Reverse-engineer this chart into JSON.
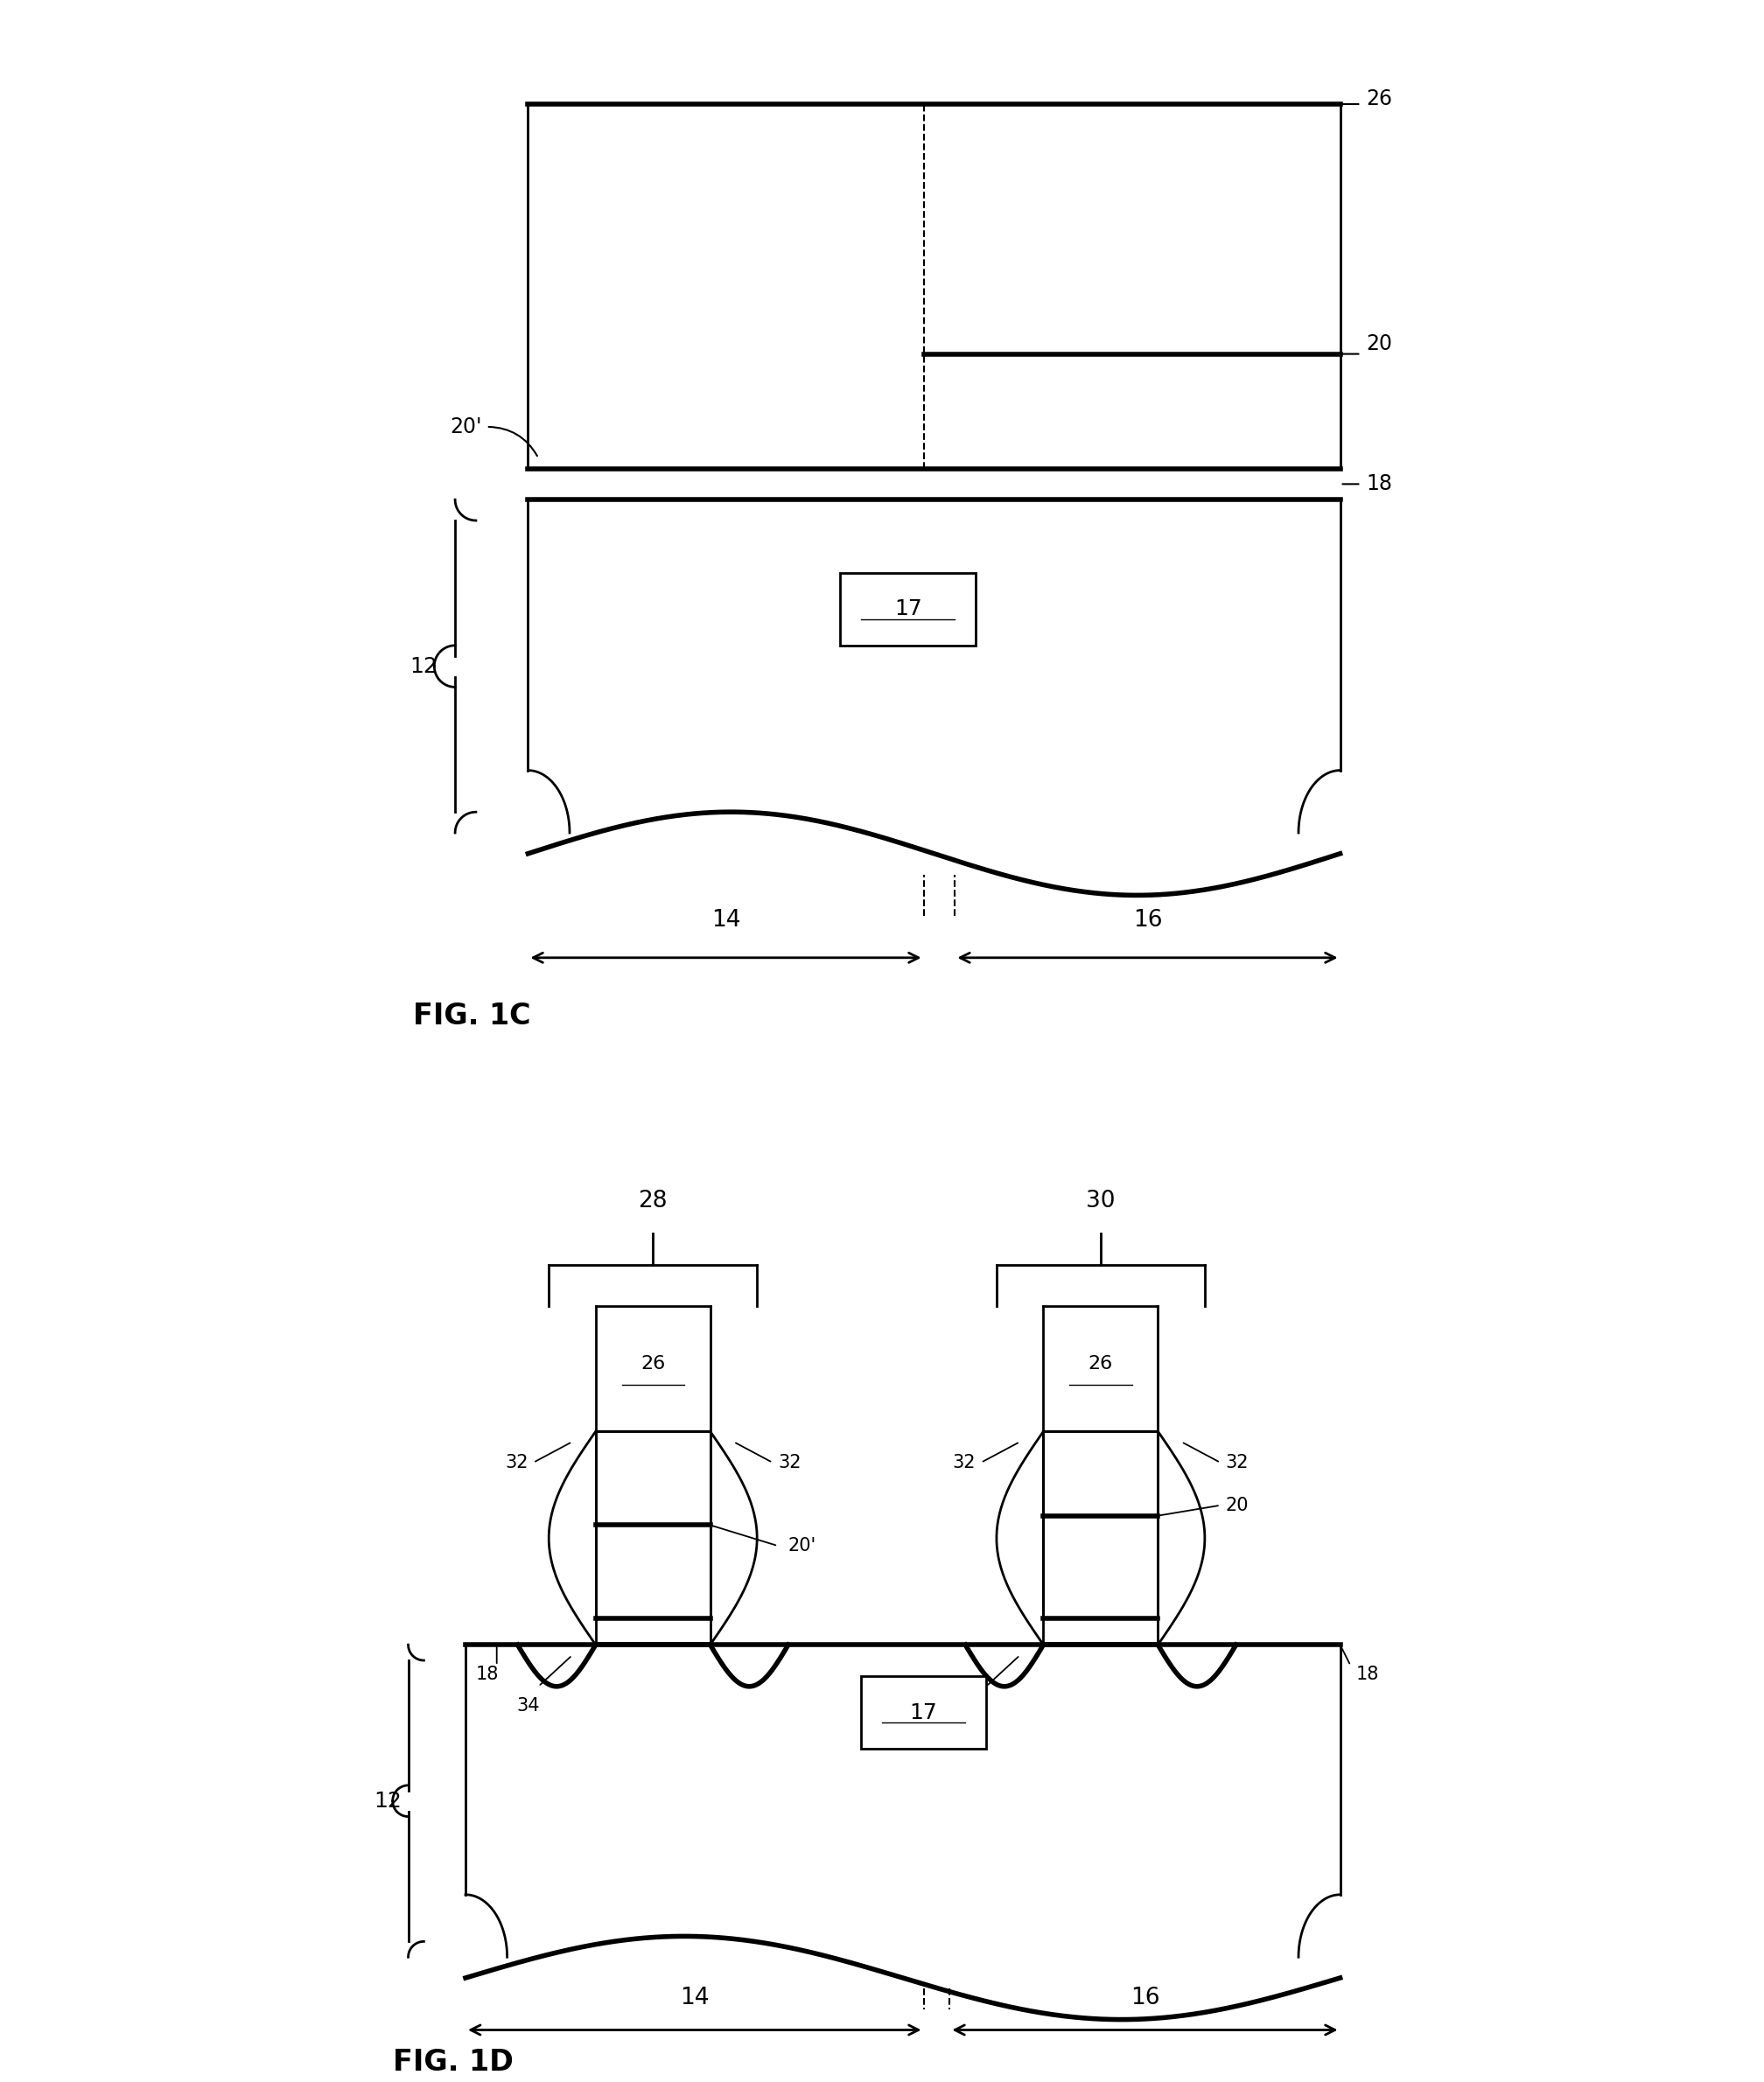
{
  "background_color": "#ffffff",
  "line_color": "#000000",
  "lw": 2.0,
  "lw_thick": 4.0,
  "fig_width": 20.16,
  "fig_height": 23.8,
  "fig1c_label": "FIG. 1C",
  "fig1d_label": "FIG. 1D"
}
